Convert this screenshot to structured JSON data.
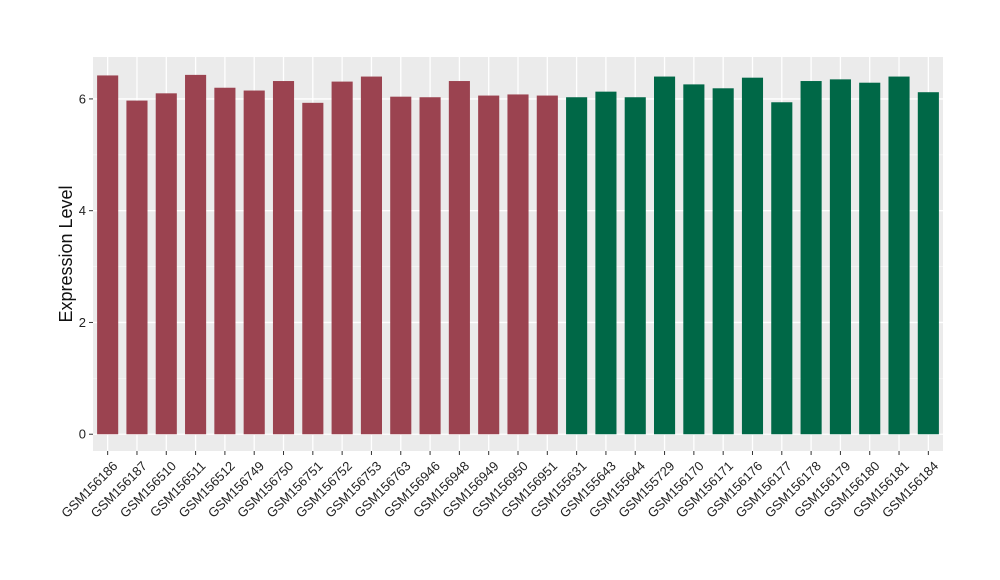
{
  "chart_data": {
    "type": "bar",
    "title": "",
    "xlabel": "",
    "ylabel": "Expression Level",
    "ylim": [
      -0.3,
      6.75
    ],
    "yticks": [
      0,
      2,
      4,
      6
    ],
    "grid": true,
    "background": "#ebebeb",
    "group_colors": [
      "#9b4350",
      "#006847"
    ],
    "categories": [
      "GSM156186",
      "GSM156187",
      "GSM156510",
      "GSM156511",
      "GSM156512",
      "GSM156749",
      "GSM156750",
      "GSM156751",
      "GSM156752",
      "GSM156753",
      "GSM156763",
      "GSM156946",
      "GSM156948",
      "GSM156949",
      "GSM156950",
      "GSM156951",
      "GSM155631",
      "GSM155643",
      "GSM155644",
      "GSM155729",
      "GSM156170",
      "GSM156171",
      "GSM156176",
      "GSM156177",
      "GSM156178",
      "GSM156179",
      "GSM156180",
      "GSM156181",
      "GSM156184"
    ],
    "values": [
      6.42,
      5.97,
      6.1,
      6.43,
      6.2,
      6.15,
      6.32,
      5.93,
      6.31,
      6.4,
      6.04,
      6.03,
      6.32,
      6.06,
      6.08,
      6.06,
      6.03,
      6.13,
      6.03,
      6.4,
      6.26,
      6.19,
      6.38,
      5.94,
      6.32,
      6.35,
      6.29,
      6.4,
      6.12
    ],
    "groups": [
      0,
      0,
      0,
      0,
      0,
      0,
      0,
      0,
      0,
      0,
      0,
      0,
      0,
      0,
      0,
      0,
      1,
      1,
      1,
      1,
      1,
      1,
      1,
      1,
      1,
      1,
      1,
      1,
      1
    ]
  }
}
